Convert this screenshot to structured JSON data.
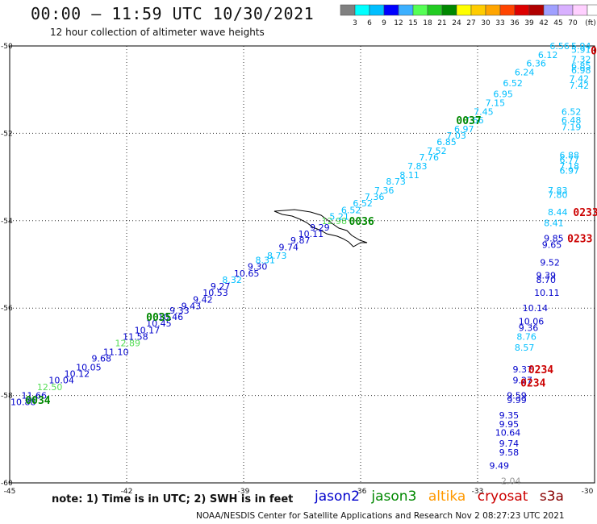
{
  "header": {
    "title": "00:00 – 11:59 UTC 10/30/2021",
    "subtitle": "12 hour collection of altimeter wave heights"
  },
  "legend": {
    "colors": [
      "#808080",
      "#00ffff",
      "#00bfff",
      "#0000ff",
      "#3cb0ff",
      "#55ff55",
      "#22cc22",
      "#008800",
      "#ffff00",
      "#ffcc00",
      "#ffa500",
      "#ff4400",
      "#dd0000",
      "#b00000",
      "#a0a0ff",
      "#d8b0ff",
      "#ffd0ff",
      "#ffffff"
    ],
    "labels": [
      "3",
      "6",
      "9",
      "12",
      "15",
      "18",
      "21",
      "24",
      "27",
      "30",
      "33",
      "36",
      "39",
      "42",
      "45",
      "70",
      "(ft)"
    ]
  },
  "axes": {
    "x_ticks": [
      "-45",
      "-42",
      "-39",
      "-36",
      "-33",
      "-30"
    ],
    "y_ticks": [
      "-50",
      "-52",
      "-54",
      "-56",
      "-58",
      "-60"
    ]
  },
  "satellites": [
    {
      "name": "jason2",
      "color": "#0000cc"
    },
    {
      "name": "jason3",
      "color": "#008800"
    },
    {
      "name": "altika",
      "color": "#ff9900"
    },
    {
      "name": "cryosat",
      "color": "#cc0000"
    },
    {
      "name": "s3a",
      "color": "#880000"
    }
  ],
  "note": "note:  1) Time is in UTC;  2) SWH is in feet",
  "credit": "NOAA/NESDIS Center for Satellite Applications and Research    Nov  2 08:27:23 UTC 2021",
  "pass_labels": [
    {
      "text": "0034",
      "lon": -44.6,
      "lat": -58.1,
      "sat": "jason3"
    },
    {
      "text": "0035",
      "lon": -41.5,
      "lat": -56.2,
      "sat": "jason3"
    },
    {
      "text": "0036",
      "lon": -36.3,
      "lat": -54.0,
      "sat": "jason3"
    },
    {
      "text": "0037",
      "lon": -33.55,
      "lat": -51.7,
      "sat": "jason3"
    },
    {
      "text": "0233",
      "lon": -30.55,
      "lat": -53.8,
      "sat": "cryosat"
    },
    {
      "text": "0233",
      "lon": -30.7,
      "lat": -54.4,
      "sat": "cryosat"
    },
    {
      "text": "0234",
      "lon": -31.7,
      "lat": -57.4,
      "sat": "cryosat"
    },
    {
      "text": "0234",
      "lon": -31.9,
      "lat": -57.7,
      "sat": "cryosat"
    },
    {
      "text": "0",
      "lon": -30.1,
      "lat": -50.1,
      "sat": "cryosat"
    }
  ],
  "wave_heights": [
    {
      "v": "10.88",
      "lon": -45.0,
      "lat": -58.15,
      "c": "#0000cc"
    },
    {
      "v": "11.66",
      "lon": -44.7,
      "lat": -58.0,
      "c": "#0000cc"
    },
    {
      "v": "12.50",
      "lon": -44.3,
      "lat": -57.8,
      "c": "#55dd55"
    },
    {
      "v": "10.04",
      "lon": -44.0,
      "lat": -57.65,
      "c": "#0000cc"
    },
    {
      "v": "10.12",
      "lon": -43.6,
      "lat": -57.5,
      "c": "#0000cc"
    },
    {
      "v": "10.05",
      "lon": -43.3,
      "lat": -57.35,
      "c": "#0000cc"
    },
    {
      "v": "9.68",
      "lon": -42.9,
      "lat": -57.15,
      "c": "#0000cc"
    },
    {
      "v": "11.10",
      "lon": -42.6,
      "lat": -57.0,
      "c": "#0000cc"
    },
    {
      "v": "12.89",
      "lon": -42.3,
      "lat": -56.8,
      "c": "#55dd55"
    },
    {
      "v": "11.58",
      "lon": -42.1,
      "lat": -56.65,
      "c": "#0000cc"
    },
    {
      "v": "10.17",
      "lon": -41.8,
      "lat": -56.5,
      "c": "#0000cc"
    },
    {
      "v": "10.45",
      "lon": -41.5,
      "lat": -56.35,
      "c": "#0000cc"
    },
    {
      "v": "10.46",
      "lon": -41.2,
      "lat": -56.2,
      "c": "#0000cc"
    },
    {
      "v": "9.33",
      "lon": -40.9,
      "lat": -56.05,
      "c": "#0000cc"
    },
    {
      "v": "9.43",
      "lon": -40.6,
      "lat": -55.95,
      "c": "#0000cc"
    },
    {
      "v": "9.42",
      "lon": -40.3,
      "lat": -55.8,
      "c": "#0000cc"
    },
    {
      "v": "10.53",
      "lon": -40.05,
      "lat": -55.65,
      "c": "#0000cc"
    },
    {
      "v": "9.27",
      "lon": -39.85,
      "lat": -55.5,
      "c": "#0000cc"
    },
    {
      "v": "8.32",
      "lon": -39.55,
      "lat": -55.35,
      "c": "#00bfff"
    },
    {
      "v": "10.65",
      "lon": -39.25,
      "lat": -55.2,
      "c": "#0000cc"
    },
    {
      "v": "9.30",
      "lon": -38.9,
      "lat": -55.05,
      "c": "#0000cc"
    },
    {
      "v": "8.31",
      "lon": -38.7,
      "lat": -54.9,
      "c": "#00bfff"
    },
    {
      "v": "8.73",
      "lon": -38.4,
      "lat": -54.8,
      "c": "#00bfff"
    },
    {
      "v": "9.74",
      "lon": -38.1,
      "lat": -54.6,
      "c": "#0000cc"
    },
    {
      "v": "9.87",
      "lon": -37.8,
      "lat": -54.45,
      "c": "#0000cc"
    },
    {
      "v": "10.11",
      "lon": -37.6,
      "lat": -54.3,
      "c": "#0000cc"
    },
    {
      "v": "9.29",
      "lon": -37.3,
      "lat": -54.15,
      "c": "#0000cc"
    },
    {
      "v": "12.98",
      "lon": -37.0,
      "lat": -54.0,
      "c": "#55dd55"
    },
    {
      "v": "5.21",
      "lon": -36.8,
      "lat": -53.9,
      "c": "#00bfff"
    },
    {
      "v": "6.52",
      "lon": -36.5,
      "lat": -53.75,
      "c": "#00bfff"
    },
    {
      "v": "6.52",
      "lon": -36.2,
      "lat": -53.6,
      "c": "#00bfff"
    },
    {
      "v": "7.36",
      "lon": -35.9,
      "lat": -53.45,
      "c": "#00bfff"
    },
    {
      "v": "7.36",
      "lon": -35.65,
      "lat": -53.3,
      "c": "#00bfff"
    },
    {
      "v": "8.73",
      "lon": -35.35,
      "lat": -53.1,
      "c": "#00bfff"
    },
    {
      "v": "8.11",
      "lon": -35.0,
      "lat": -52.95,
      "c": "#00bfff"
    },
    {
      "v": "7.83",
      "lon": -34.8,
      "lat": -52.75,
      "c": "#00bfff"
    },
    {
      "v": "7.76",
      "lon": -34.5,
      "lat": -52.55,
      "c": "#00bfff"
    },
    {
      "v": "7.52",
      "lon": -34.3,
      "lat": -52.4,
      "c": "#00bfff"
    },
    {
      "v": "6.85",
      "lon": -34.05,
      "lat": -52.2,
      "c": "#00bfff"
    },
    {
      "v": "7.03",
      "lon": -33.8,
      "lat": -52.05,
      "c": "#00bfff"
    },
    {
      "v": "6.97",
      "lon": -33.6,
      "lat": -51.9,
      "c": "#00bfff"
    },
    {
      "v": "7.66",
      "lon": -33.35,
      "lat": -51.7,
      "c": "#00bfff"
    },
    {
      "v": "7.45",
      "lon": -33.1,
      "lat": -51.5,
      "c": "#00bfff"
    },
    {
      "v": "7.15",
      "lon": -32.8,
      "lat": -51.3,
      "c": "#00bfff"
    },
    {
      "v": "6.95",
      "lon": -32.6,
      "lat": -51.1,
      "c": "#00bfff"
    },
    {
      "v": "6.52",
      "lon": -32.35,
      "lat": -50.85,
      "c": "#00bfff"
    },
    {
      "v": "6.24",
      "lon": -32.05,
      "lat": -50.6,
      "c": "#00bfff"
    },
    {
      "v": "6.36",
      "lon": -31.75,
      "lat": -50.4,
      "c": "#00bfff"
    },
    {
      "v": "6.12",
      "lon": -31.45,
      "lat": -50.2,
      "c": "#00bfff"
    },
    {
      "v": "6.56",
      "lon": -31.15,
      "lat": -50.0,
      "c": "#00bfff"
    },
    {
      "v": "5.94",
      "lon": -30.6,
      "lat": -50.0,
      "c": "#00bfff"
    },
    {
      "v": "5.91",
      "lon": -30.6,
      "lat": -50.08,
      "c": "#00bfff"
    },
    {
      "v": "7.32",
      "lon": -30.6,
      "lat": -50.3,
      "c": "#00bfff"
    },
    {
      "v": "6.85",
      "lon": -30.6,
      "lat": -50.45,
      "c": "#00bfff"
    },
    {
      "v": "6.98",
      "lon": -30.6,
      "lat": -50.55,
      "c": "#00bfff"
    },
    {
      "v": "7.42",
      "lon": -30.65,
      "lat": -50.75,
      "c": "#00bfff"
    },
    {
      "v": "7.42",
      "lon": -30.65,
      "lat": -50.9,
      "c": "#00bfff"
    },
    {
      "v": "6.52",
      "lon": -30.85,
      "lat": -51.5,
      "c": "#00bfff"
    },
    {
      "v": "6.48",
      "lon": -30.85,
      "lat": -51.7,
      "c": "#00bfff"
    },
    {
      "v": "7.19",
      "lon": -30.85,
      "lat": -51.85,
      "c": "#00bfff"
    },
    {
      "v": "6.88",
      "lon": -30.9,
      "lat": -52.5,
      "c": "#00bfff"
    },
    {
      "v": "6.77",
      "lon": -30.9,
      "lat": -52.6,
      "c": "#00bfff"
    },
    {
      "v": "7.18",
      "lon": -30.9,
      "lat": -52.75,
      "c": "#00bfff"
    },
    {
      "v": "6.97",
      "lon": -30.9,
      "lat": -52.85,
      "c": "#00bfff"
    },
    {
      "v": "7.83",
      "lon": -31.2,
      "lat": -53.3,
      "c": "#00bfff"
    },
    {
      "v": "7.80",
      "lon": -31.2,
      "lat": -53.4,
      "c": "#00bfff"
    },
    {
      "v": "8.44",
      "lon": -31.2,
      "lat": -53.8,
      "c": "#00bfff"
    },
    {
      "v": "8.41",
      "lon": -31.3,
      "lat": -54.05,
      "c": "#00bfff"
    },
    {
      "v": "9.85",
      "lon": -31.3,
      "lat": -54.4,
      "c": "#0000cc"
    },
    {
      "v": "9.65",
      "lon": -31.35,
      "lat": -54.55,
      "c": "#0000cc"
    },
    {
      "v": "9.52",
      "lon": -31.4,
      "lat": -54.95,
      "c": "#0000cc"
    },
    {
      "v": "9.39",
      "lon": -31.5,
      "lat": -55.25,
      "c": "#0000cc"
    },
    {
      "v": "8.70",
      "lon": -31.5,
      "lat": -55.35,
      "c": "#0000cc"
    },
    {
      "v": "10.11",
      "lon": -31.55,
      "lat": -55.65,
      "c": "#0000cc"
    },
    {
      "v": "10.14",
      "lon": -31.85,
      "lat": -56.0,
      "c": "#0000cc"
    },
    {
      "v": "10.06",
      "lon": -31.95,
      "lat": -56.3,
      "c": "#0000cc"
    },
    {
      "v": "9.36",
      "lon": -31.95,
      "lat": -56.45,
      "c": "#0000cc"
    },
    {
      "v": "8.76",
      "lon": -32.0,
      "lat": -56.65,
      "c": "#00bfff"
    },
    {
      "v": "8.57",
      "lon": -32.05,
      "lat": -56.9,
      "c": "#00bfff"
    },
    {
      "v": "9.37",
      "lon": -32.1,
      "lat": -57.4,
      "c": "#0000cc"
    },
    {
      "v": "9.27",
      "lon": -32.1,
      "lat": -57.65,
      "c": "#0000cc"
    },
    {
      "v": "9.59",
      "lon": -32.25,
      "lat": -58.0,
      "c": "#0000cc"
    },
    {
      "v": "9.99",
      "lon": -32.25,
      "lat": -58.1,
      "c": "#0000cc"
    },
    {
      "v": "9.35",
      "lon": -32.45,
      "lat": -58.45,
      "c": "#0000cc"
    },
    {
      "v": "9.95",
      "lon": -32.45,
      "lat": -58.65,
      "c": "#0000cc"
    },
    {
      "v": "10.64",
      "lon": -32.55,
      "lat": -58.85,
      "c": "#0000cc"
    },
    {
      "v": "9.74",
      "lon": -32.45,
      "lat": -59.1,
      "c": "#0000cc"
    },
    {
      "v": "9.58",
      "lon": -32.45,
      "lat": -59.3,
      "c": "#0000cc"
    },
    {
      "v": "9.49",
      "lon": -32.7,
      "lat": -59.6,
      "c": "#0000cc"
    },
    {
      "v": "2.04",
      "lon": -32.4,
      "lat": -59.95,
      "c": "#999999"
    }
  ]
}
